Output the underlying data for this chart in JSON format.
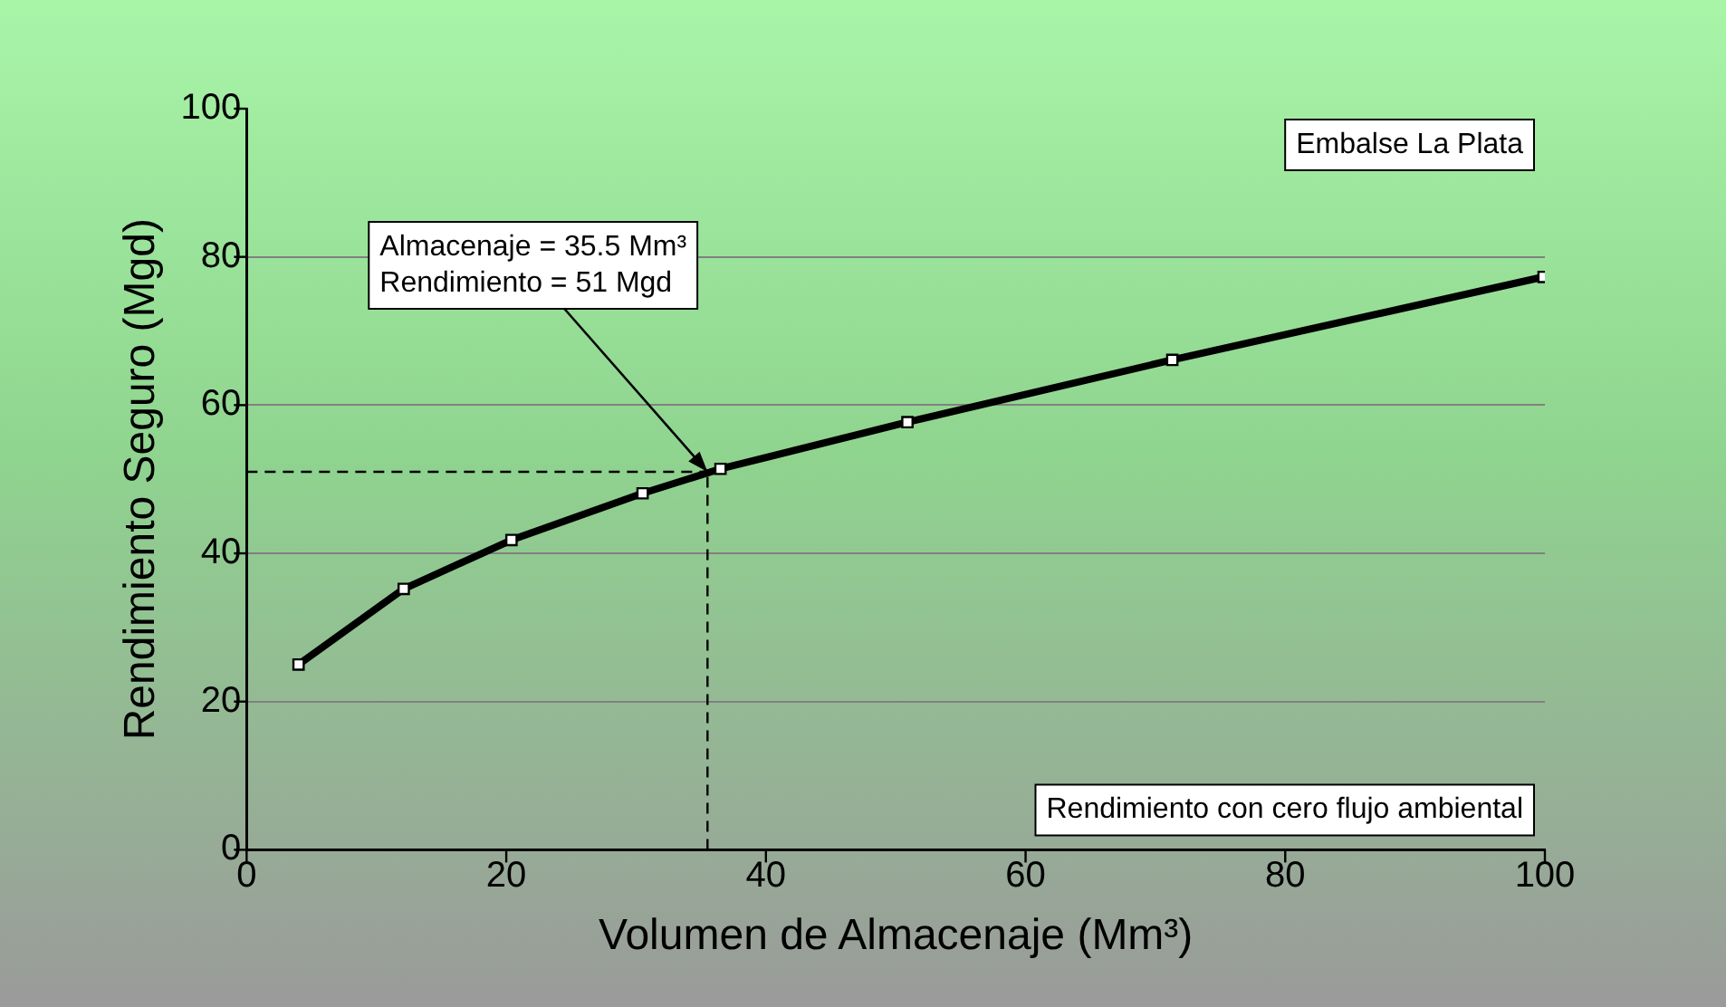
{
  "chart_data": {
    "type": "line",
    "xlabel": "Volumen de Almacenaje (Mm³)",
    "ylabel": "Rendimiento Seguro (Mgd)",
    "series": [
      {
        "color": "#000000",
        "x": [
          4,
          12.1,
          20.4,
          30.5,
          36.5,
          50.9,
          71.3,
          99.9
        ],
        "values": [
          25,
          35.2,
          41.8,
          48.1,
          51.4,
          57.7,
          66.1,
          77.3
        ]
      }
    ],
    "xlim": [
      0,
      100
    ],
    "xticks": [
      0,
      20,
      40,
      60,
      80,
      100
    ],
    "ylim": [
      0,
      100
    ],
    "yticks": [
      0,
      20,
      40,
      60,
      80,
      100
    ],
    "grid": "y",
    "legend": false,
    "marker": "square",
    "line_style": "solid",
    "ref_lines": [
      {
        "axis": "x",
        "value": 35.5,
        "line_style": "dashed",
        "color": "#000000"
      },
      {
        "axis": "y",
        "value": 51,
        "line_style": "dashed",
        "color": "#000000"
      }
    ],
    "annotations": [
      {
        "text": "Almacenaje = 35.5 Mm³\nRendimiento = 51 Mgd",
        "x": 35.5,
        "y": 51
      },
      "Embalse La Plata",
      "Rendimiento con cero flujo ambiental"
    ]
  }
}
